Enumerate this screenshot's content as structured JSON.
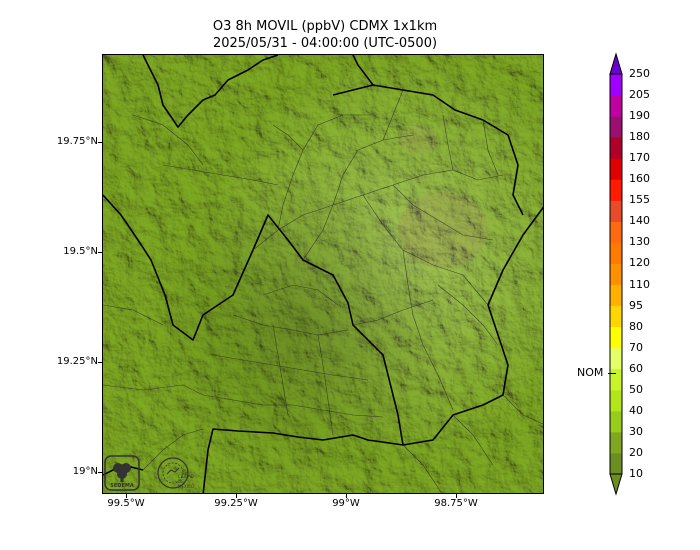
{
  "title": {
    "line1": "O3 8h MOVIL (ppbV) CDMX 1x1km",
    "line2": "2025/05/31 - 04:00:00 (UTC-0500)"
  },
  "map": {
    "y_ticks": [
      "19.75°N",
      "19.5°N",
      "19.25°N",
      "19°N"
    ],
    "x_ticks": [
      "99.5°W",
      "99.25°W",
      "99°W",
      "98.75°W"
    ]
  },
  "colorbar": {
    "levels": [
      {
        "label": "10",
        "color": "#6b8e23"
      },
      {
        "label": "20",
        "color": "#7fa820"
      },
      {
        "label": "30",
        "color": "#99cc1a"
      },
      {
        "label": "40",
        "color": "#b2e61a"
      },
      {
        "label": "50",
        "color": "#c8f52a"
      },
      {
        "label": "60",
        "color": "#e5ff66"
      },
      {
        "label": "70",
        "color": "#ffff00"
      },
      {
        "label": "80",
        "color": "#ffd700"
      },
      {
        "label": "95",
        "color": "#ffb000"
      },
      {
        "label": "110",
        "color": "#ff9000"
      },
      {
        "label": "120",
        "color": "#ff7a00"
      },
      {
        "label": "130",
        "color": "#ff6a10"
      },
      {
        "label": "140",
        "color": "#e84a2a"
      },
      {
        "label": "155",
        "color": "#ff1a00"
      },
      {
        "label": "160",
        "color": "#e00000"
      },
      {
        "label": "170",
        "color": "#b0002a"
      },
      {
        "label": "180",
        "color": "#9a1070"
      },
      {
        "label": "190",
        "color": "#c000a0"
      },
      {
        "label": "205",
        "color": "#a000ff"
      },
      {
        "label": "250",
        "color": "#6a00d0"
      }
    ],
    "nom_label": "NOM",
    "nom_value": 58
  },
  "logos": {
    "sedema": "SEDEMA",
    "cdmx": "CIUDAD DE MÉXICO"
  },
  "colors": {
    "terrain_base": "#9fc33a",
    "terrain_dark": "#6f8f22",
    "terrain_light": "#cfe58a",
    "terrain_tan": "#c9c08a"
  }
}
